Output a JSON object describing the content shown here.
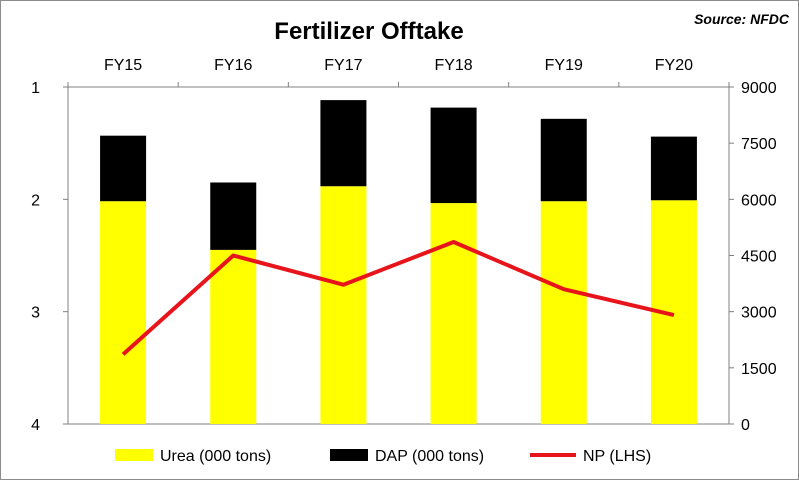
{
  "chart_data": {
    "type": "bar",
    "title": "Fertilizer Offtake",
    "source": "Source: NFDC",
    "categories": [
      "FY15",
      "FY16",
      "FY17",
      "FY18",
      "FY19",
      "FY20"
    ],
    "stacked": true,
    "series": [
      {
        "name": "Urea (000 tons)",
        "axis": "right",
        "type": "bar",
        "color": "#ffff00",
        "values": [
          5950,
          4650,
          6350,
          5900,
          5950,
          5975
        ]
      },
      {
        "name": "DAP (000 tons)",
        "axis": "right",
        "type": "bar",
        "color": "#000000",
        "values": [
          1750,
          1800,
          2300,
          2550,
          2200,
          1700
        ]
      },
      {
        "name": "NP (LHS)",
        "axis": "left",
        "type": "line",
        "color": "#e8141b",
        "values": [
          3.38,
          2.5,
          2.76,
          2.38,
          2.8,
          3.03
        ]
      }
    ],
    "left_axis": {
      "min": 1,
      "max": 4,
      "reversed": true,
      "ticks": [
        "1",
        "2",
        "3",
        "4"
      ]
    },
    "right_axis": {
      "min": 0,
      "max": 9000,
      "ticks": [
        "0",
        "1500",
        "3000",
        "4500",
        "6000",
        "7500",
        "9000"
      ]
    },
    "x_axis_position": "top",
    "grid": false,
    "legend_position": "bottom"
  }
}
